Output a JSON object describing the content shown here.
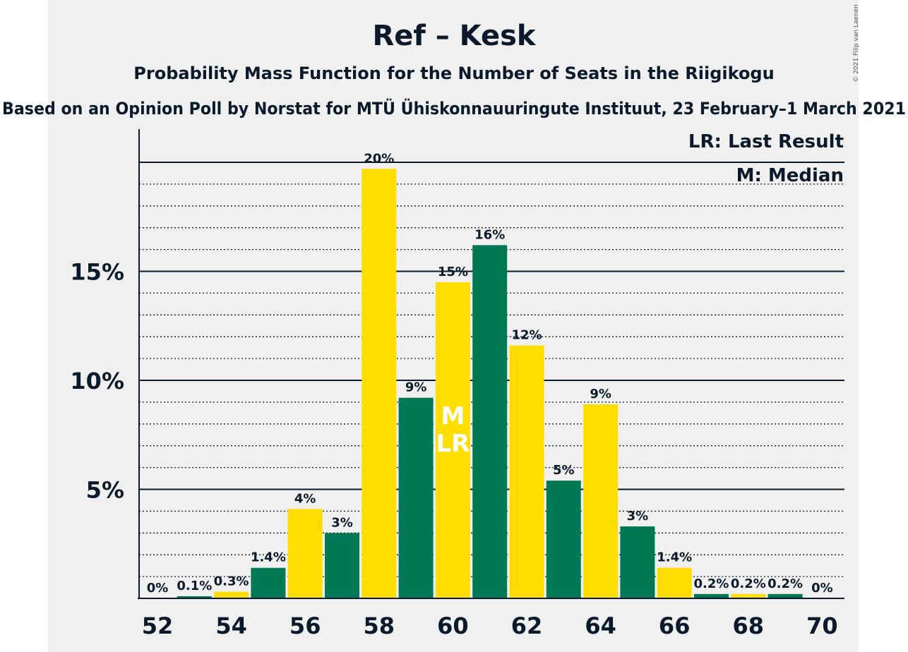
{
  "title": "Ref – Kesk",
  "subtitle": "Probability Mass Function for the Number of Seats in the Riigikogu",
  "source": "Based on an Opinion Poll by Norstat for MTÜ Ühiskonnauuringute Instituut, 23 February–1 March 2021",
  "copyright": "© 2021 Filip van Laenen",
  "legend": {
    "lr": "LR: Last Result",
    "m": "M: Median"
  },
  "markers": {
    "median_label": "M",
    "last_result_label": "LR",
    "median_seat": 60,
    "last_result_seat": 60
  },
  "colors": {
    "green": "#007755",
    "yellow": "#ffdd00",
    "background": "#f0f0f0",
    "text": "#0a1a2a"
  },
  "chart_data": {
    "type": "bar",
    "x": [
      52,
      53,
      54,
      55,
      56,
      57,
      58,
      59,
      60,
      61,
      62,
      63,
      64,
      65,
      66,
      67,
      68,
      69,
      70
    ],
    "values": [
      0,
      0.1,
      0.3,
      1.4,
      4.1,
      3.0,
      19.7,
      9.2,
      14.5,
      16.2,
      11.6,
      5.4,
      8.9,
      3.3,
      1.4,
      0.2,
      0.2,
      0.2,
      0
    ],
    "data_labels": [
      "0%",
      "0.1%",
      "0.3%",
      "1.4%",
      "4%",
      "3%",
      "20%",
      "9%",
      "15%",
      "16%",
      "12%",
      "5%",
      "9%",
      "3%",
      "1.4%",
      "0.2%",
      "0.2%",
      "0.2%",
      "0%"
    ],
    "x_tick_labels": [
      "52",
      "54",
      "56",
      "58",
      "60",
      "62",
      "64",
      "66",
      "68",
      "70"
    ],
    "y_ticks": [
      5,
      10,
      15
    ],
    "y_tick_labels": [
      "5%",
      "10%",
      "15%"
    ],
    "ylim": [
      0,
      21.5
    ],
    "grid": true
  }
}
